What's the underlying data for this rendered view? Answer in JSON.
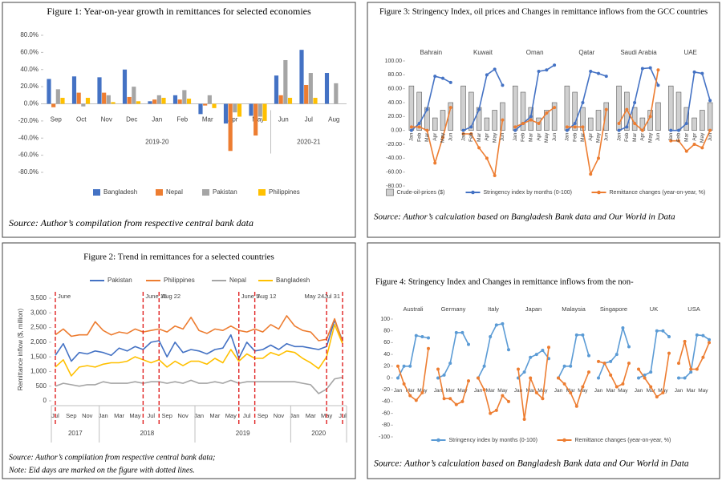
{
  "chart_data": [
    {
      "type": "bar",
      "title": "Figure 1: Year-on-year growth in remittances for selected economies",
      "category_groups": [
        {
          "label": "2019-20",
          "categories": [
            "Sep",
            "Oct",
            "Nov",
            "Dec",
            "Jan",
            "Feb",
            "Mar",
            "Apr",
            "May"
          ]
        },
        {
          "label": "2020-21",
          "categories": [
            "Jun",
            "Jul",
            "Aug"
          ]
        }
      ],
      "series": [
        {
          "name": "Bangladesh",
          "color": "#4472c4",
          "values": [
            29,
            32,
            31,
            40,
            3,
            10,
            -12,
            -23,
            -14,
            33,
            63,
            36
          ]
        },
        {
          "name": "Nepal",
          "color": "#ed7d31",
          "values": [
            -4,
            13,
            13,
            8,
            5,
            5,
            -2,
            -55,
            -37,
            10,
            22,
            null
          ]
        },
        {
          "name": "Pakistan",
          "color": "#a5a5a5",
          "values": [
            17,
            -3,
            10,
            20,
            10,
            16,
            10,
            -10,
            -15,
            51,
            36,
            24
          ]
        },
        {
          "name": "Philippines",
          "color": "#ffc000",
          "values": [
            7,
            7,
            2,
            3,
            7,
            6,
            -5,
            -15,
            -20,
            7,
            7,
            null
          ]
        }
      ],
      "ylim": [
        -80,
        80
      ],
      "yticks": [
        {
          "value": 80,
          "label": "80.0%"
        },
        {
          "value": 60,
          "label": "60.0%"
        },
        {
          "value": 40,
          "label": "40.0%"
        },
        {
          "value": 20,
          "label": "20.0%"
        },
        {
          "value": 0,
          "label": "0.0%"
        },
        {
          "value": -20,
          "label": "-20.0%"
        },
        {
          "value": -40,
          "label": "-40.0%"
        },
        {
          "value": -60,
          "label": "-60.0%"
        },
        {
          "value": -80,
          "label": "-80.0%"
        }
      ],
      "grid": false,
      "notes": [
        "Source: Author’s compilation from respective central bank data"
      ]
    },
    {
      "type": "line",
      "title": "Figure 2: Trend in remittances for a selected countries",
      "y_label": "Remittance inflow ($, million)",
      "category_groups": [
        {
          "label": "2017",
          "categories": [
            "Jul",
            null,
            "Sep",
            null,
            "Nov",
            null
          ]
        },
        {
          "label": "2018",
          "categories": [
            "Jan",
            null,
            "Mar",
            null,
            "May",
            null,
            "Jul",
            null,
            "Sep",
            null,
            "Nov",
            null
          ]
        },
        {
          "label": "2019",
          "categories": [
            "Jan",
            null,
            "Mar",
            null,
            "May",
            null,
            "Jul",
            null,
            "Sep",
            null,
            "Nov",
            null
          ]
        },
        {
          "label": "2020",
          "categories": [
            "Jan",
            null,
            "Mar",
            null,
            "May",
            null,
            "Jul"
          ]
        }
      ],
      "series": [
        {
          "name": "Pakistan",
          "color": "#4472c4",
          "values": [
            1550,
            1950,
            1350,
            1650,
            1600,
            1700,
            1650,
            1550,
            1800,
            1700,
            1850,
            1750,
            2000,
            2050,
            1500,
            2000,
            1650,
            1750,
            1700,
            1600,
            1750,
            1800,
            2250,
            1450,
            2000,
            1700,
            1750,
            1900,
            1750,
            1950,
            1850,
            1850,
            1800,
            1750,
            1850,
            2750,
            2050
          ]
        },
        {
          "name": "Philippines",
          "color": "#ed7d31",
          "values": [
            2250,
            2450,
            2200,
            2250,
            2250,
            2700,
            2400,
            2250,
            2350,
            2300,
            2450,
            2350,
            2400,
            2450,
            2350,
            2550,
            2450,
            2850,
            2400,
            2300,
            2450,
            2400,
            2550,
            2400,
            2350,
            2450,
            2350,
            2600,
            2450,
            2900,
            2550,
            2400,
            2350,
            2050,
            2100,
            2800,
            2000
          ]
        },
        {
          "name": "Nepal",
          "color": "#a5a5a5",
          "values": [
            500,
            600,
            550,
            500,
            550,
            550,
            650,
            600,
            600,
            600,
            650,
            600,
            650,
            650,
            600,
            650,
            600,
            700,
            600,
            600,
            650,
            600,
            700,
            600,
            650,
            650,
            650,
            650,
            650,
            650,
            650,
            600,
            550,
            250,
            400,
            750,
            800
          ]
        },
        {
          "name": "Bangladesh",
          "color": "#ffc000",
          "values": [
            1150,
            1400,
            850,
            1150,
            1200,
            1150,
            1250,
            1300,
            1300,
            1350,
            1500,
            1400,
            1300,
            1400,
            1150,
            1350,
            1200,
            1350,
            1350,
            1250,
            1450,
            1300,
            1750,
            1350,
            1600,
            1450,
            1450,
            1650,
            1550,
            1700,
            1650,
            1450,
            1300,
            1100,
            1500,
            2600,
            1950
          ]
        }
      ],
      "eid_marks": [
        {
          "label": "June",
          "index": 0
        },
        {
          "label": "June 15",
          "index": 11
        },
        {
          "label": "Aug 22",
          "index": 13
        },
        {
          "label": "June 5",
          "index": 23
        },
        {
          "label": "Aug 12",
          "index": 25
        },
        {
          "label": "May 24",
          "index": 34
        },
        {
          "label": "Jul 31",
          "index": 36
        }
      ],
      "eid_color": "#e02020",
      "ylim": [
        0,
        3500
      ],
      "yticks": [
        0,
        500,
        {
          "value": 1000,
          "label": "1,000"
        },
        {
          "value": 1500,
          "label": "1,500"
        },
        {
          "value": 2000,
          "label": "2,000"
        },
        {
          "value": 2500,
          "label": "2,500"
        },
        {
          "value": 3000,
          "label": "3,000"
        },
        {
          "value": 3500,
          "label": "3,500"
        }
      ],
      "grid": false,
      "notes": [
        "Source: Author’s compilation from respective central bank data;",
        "Note: Eid days are marked on the figure with dotted lines."
      ]
    },
    {
      "type": "combo",
      "title": "Figure 3: Stringency Index, oil prices and Changes in remittance inflows from the GCC countries",
      "categories": [
        "Jan",
        "Feb",
        "Mar",
        "Apr",
        "May",
        "Jun"
      ],
      "series": [
        {
          "name": "Crude-oil-prices ($)",
          "color": "#d0d0d0",
          "mark": "bar"
        },
        {
          "name": "Stringency index by months (0-100)",
          "color": "#4472c4",
          "mark": "line"
        },
        {
          "name": "Remittance changes (year-on-year, %)",
          "color": "#ed7d31",
          "mark": "line"
        }
      ],
      "panels": [
        {
          "title": "Bahrain",
          "values": [
            [
              64,
              55,
              33,
              18,
              29,
              40
            ],
            [
              0,
              10,
              30,
              78,
              75,
              69
            ],
            [
              5,
              5,
              0,
              -47,
              -10,
              33
            ]
          ]
        },
        {
          "title": "Kuwait",
          "values": [
            [
              64,
              55,
              33,
              18,
              29,
              40
            ],
            [
              0,
              5,
              30,
              80,
              88,
              65
            ],
            [
              -5,
              -5,
              -25,
              -40,
              -65,
              15
            ]
          ]
        },
        {
          "title": "Oman",
          "values": [
            [
              64,
              55,
              33,
              18,
              29,
              40
            ],
            [
              0,
              10,
              20,
              85,
              87,
              94
            ],
            [
              5,
              10,
              15,
              10,
              25,
              33
            ]
          ]
        },
        {
          "title": "Qatar",
          "values": [
            [
              64,
              55,
              33,
              18,
              29,
              40
            ],
            [
              0,
              10,
              40,
              85,
              82,
              78
            ],
            [
              5,
              5,
              5,
              -63,
              -40,
              30
            ]
          ]
        },
        {
          "title": "Saudi Arabia",
          "values": [
            [
              64,
              55,
              33,
              18,
              29,
              40
            ],
            [
              0,
              5,
              40,
              89,
              90,
              65
            ],
            [
              10,
              30,
              10,
              0,
              20,
              87
            ]
          ]
        },
        {
          "title": "UAE",
          "values": [
            [
              64,
              55,
              33,
              18,
              29,
              40
            ],
            [
              0,
              0,
              10,
              84,
              82,
              43
            ],
            [
              -15,
              -15,
              -30,
              -20,
              -25,
              0
            ]
          ]
        }
      ],
      "ylim": [
        -80,
        100
      ],
      "yticks": [
        {
          "value": 100,
          "label": "100.00"
        },
        {
          "value": 80,
          "label": "80.00"
        },
        {
          "value": 60,
          "label": "60.00"
        },
        {
          "value": 40,
          "label": "40.00"
        },
        {
          "value": 20,
          "label": "20.00"
        },
        {
          "value": 0,
          "label": "0.00"
        },
        {
          "value": -20,
          "label": "-20.00"
        },
        {
          "value": -40,
          "label": "-40.00"
        },
        {
          "value": -60,
          "label": "-60.00"
        },
        {
          "value": -80,
          "label": "-80.00"
        }
      ],
      "grid": false,
      "notes": [
        "Source:  Author’s calculation based on Bangladesh Bank data and Our World in Data"
      ]
    },
    {
      "type": "line",
      "title": "Figure 4: Stringency Index and Changes in remittance inflows from the non-",
      "categories": [
        "Jan",
        null,
        "Mar",
        null,
        "May",
        null
      ],
      "series": [
        {
          "name": "Stringency index by months (0-100)",
          "color": "#5b9bd5"
        },
        {
          "name": "Remittance changes (year-on-year, %)",
          "color": "#ed7d31"
        }
      ],
      "panels": [
        {
          "title": "Australi",
          "values": [
            [
              0,
              20,
              20,
              72,
              70,
              68
            ],
            [
              20,
              -10,
              -30,
              -38,
              -25,
              50
            ]
          ]
        },
        {
          "title": "Germany",
          "values": [
            [
              0,
              5,
              25,
              77,
              77,
              57
            ],
            [
              15,
              -35,
              -35,
              -45,
              -40,
              -5
            ]
          ]
        },
        {
          "title": "Italy",
          "values": [
            [
              0,
              20,
              70,
              90,
              92,
              48
            ],
            [
              0,
              -20,
              -60,
              -55,
              -30,
              -40
            ]
          ]
        },
        {
          "title": "Japan",
          "values": [
            [
              0,
              10,
              35,
              40,
              47,
              33
            ],
            [
              15,
              -70,
              0,
              -25,
              -35,
              52
            ]
          ]
        },
        {
          "title": "Malaysia",
          "values": [
            [
              0,
              20,
              20,
              73,
              73,
              38
            ],
            [
              0,
              -10,
              -25,
              -48,
              -15,
              10
            ]
          ]
        },
        {
          "title": "Singapore",
          "values": [
            [
              0,
              25,
              28,
              40,
              85,
              53
            ],
            [
              28,
              25,
              5,
              -15,
              -10,
              25
            ]
          ]
        },
        {
          "title": "UK",
          "values": [
            [
              0,
              5,
              10,
              80,
              80,
              70
            ],
            [
              15,
              0,
              -15,
              -32,
              -25,
              42
            ]
          ]
        },
        {
          "title": "USA",
          "values": [
            [
              0,
              0,
              10,
              73,
              72,
              65
            ],
            [
              25,
              62,
              15,
              15,
              35,
              60
            ]
          ]
        }
      ],
      "ylim": [
        -100,
        100
      ],
      "yticks": [
        100,
        80,
        60,
        40,
        20,
        0,
        -20,
        -40,
        -60,
        -80,
        -100
      ],
      "grid": false,
      "notes": [
        "Source:  Author’s calculation based on Bangladesh Bank data and Our World in Data"
      ]
    }
  ]
}
